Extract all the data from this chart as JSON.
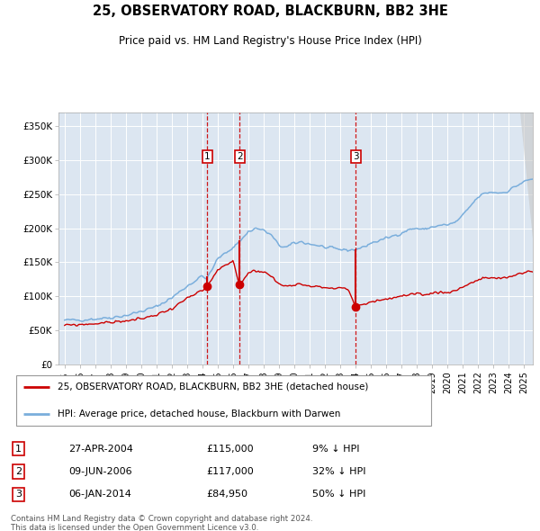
{
  "title": "25, OBSERVATORY ROAD, BLACKBURN, BB2 3HE",
  "subtitle": "Price paid vs. HM Land Registry's House Price Index (HPI)",
  "legend_line1": "25, OBSERVATORY ROAD, BLACKBURN, BB2 3HE (detached house)",
  "legend_line2": "HPI: Average price, detached house, Blackburn with Darwen",
  "footer1": "Contains HM Land Registry data © Crown copyright and database right 2024.",
  "footer2": "This data is licensed under the Open Government Licence v3.0.",
  "transactions": [
    {
      "label": "1",
      "date": "27-APR-2004",
      "price_str": "£115,000",
      "pct_str": "9% ↓ HPI",
      "date_num": 2004.32,
      "price": 115000
    },
    {
      "label": "2",
      "date": "09-JUN-2006",
      "price_str": "£117,000",
      "pct_str": "32% ↓ HPI",
      "date_num": 2006.44,
      "price": 117000
    },
    {
      "label": "3",
      "date": "06-JAN-2014",
      "price_str": "£84,950",
      "pct_str": "50% ↓ HPI",
      "date_num": 2014.02,
      "price": 84950
    }
  ],
  "ylim": [
    0,
    370000
  ],
  "yticks": [
    0,
    50000,
    100000,
    150000,
    200000,
    250000,
    300000,
    350000
  ],
  "ytick_labels": [
    "£0",
    "£50K",
    "£100K",
    "£150K",
    "£200K",
    "£250K",
    "£300K",
    "£350K"
  ],
  "xlim_start": 1994.6,
  "xlim_end": 2025.6,
  "hpi_color": "#7aaedc",
  "property_color": "#cc0000",
  "bg_color": "#dce6f1",
  "grid_color": "#ffffff",
  "transaction_line_color": "#cc0000",
  "box_color": "#cc0000",
  "xtick_years": [
    1995,
    1996,
    1997,
    1998,
    1999,
    2000,
    2001,
    2002,
    2003,
    2004,
    2005,
    2006,
    2007,
    2008,
    2009,
    2010,
    2011,
    2012,
    2013,
    2014,
    2015,
    2016,
    2017,
    2018,
    2019,
    2020,
    2021,
    2022,
    2023,
    2024,
    2025
  ]
}
